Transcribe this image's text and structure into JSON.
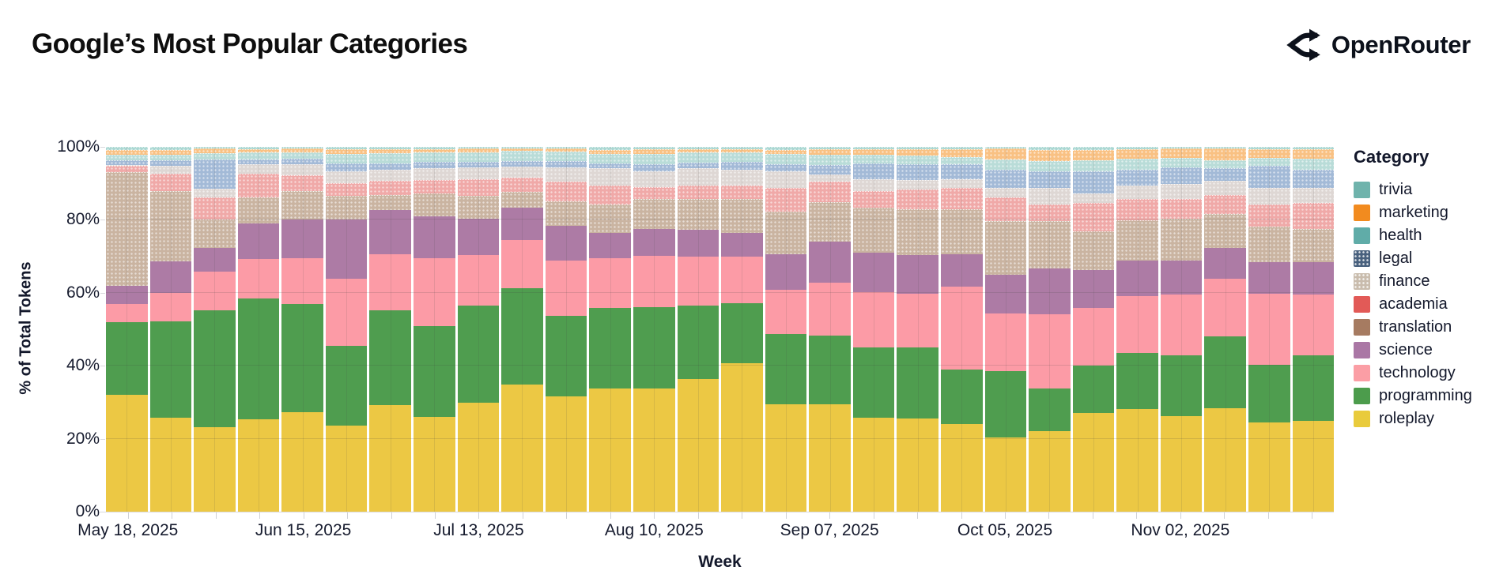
{
  "header": {
    "title": "Google’s Most Popular Categories",
    "brand": "OpenRouter",
    "brand_icon": "openrouter-fork-arrows"
  },
  "chart_data": {
    "type": "bar",
    "stacked": true,
    "title": "Google’s Most Popular Categories",
    "xlabel": "Week",
    "ylabel": "% of Total Tokens",
    "ylim": [
      0,
      100
    ],
    "grid": true,
    "legend_position": "right",
    "legend_title": "Category",
    "legend_order": [
      "trivia",
      "marketing",
      "health",
      "legal",
      "finance",
      "academia",
      "translation",
      "science",
      "technology",
      "programming",
      "roleplay"
    ],
    "y_ticks": [
      {
        "value": 0,
        "label": "0%"
      },
      {
        "value": 20,
        "label": "20%"
      },
      {
        "value": 40,
        "label": "40%"
      },
      {
        "value": 60,
        "label": "60%"
      },
      {
        "value": 80,
        "label": "80%"
      },
      {
        "value": 100,
        "label": "100%"
      }
    ],
    "categories": [
      "May 18",
      "May 25",
      "Jun 01",
      "Jun 08",
      "Jun 15",
      "Jun 22",
      "Jun 29",
      "Jul 06",
      "Jul 13",
      "Jul 20",
      "Jul 27",
      "Aug 03",
      "Aug 10",
      "Aug 17",
      "Aug 24",
      "Aug 31",
      "Sep 07",
      "Sep 14",
      "Sep 21",
      "Sep 28",
      "Oct 05",
      "Oct 12",
      "Oct 19",
      "Oct 26",
      "Nov 02",
      "Nov 09",
      "Nov 16",
      "Nov 23"
    ],
    "x_tick_labels": [
      {
        "bar_index": 0,
        "label": "May 18, 2025"
      },
      {
        "bar_index": 4,
        "label": "Jun 15, 2025"
      },
      {
        "bar_index": 8,
        "label": "Jul 13, 2025"
      },
      {
        "bar_index": 12,
        "label": "Aug 10, 2025"
      },
      {
        "bar_index": 16,
        "label": "Sep 07, 2025"
      },
      {
        "bar_index": 20,
        "label": "Oct 05, 2025"
      },
      {
        "bar_index": 24,
        "label": "Nov 02, 2025"
      }
    ],
    "series": [
      {
        "name": "roleplay",
        "bar_color": "#ecc844",
        "legend_color": "#e9cb3c",
        "pattern": false,
        "values": [
          32.0,
          25.8,
          23.2,
          25.3,
          27.3,
          23.7,
          29.2,
          25.9,
          29.9,
          34.9,
          31.7,
          33.8,
          33.8,
          36.4,
          40.8,
          29.5,
          29.5,
          25.7,
          25.5,
          24.0,
          20.4,
          22.0,
          27.0,
          28.2,
          26.3,
          28.4,
          24.5,
          25.0
        ]
      },
      {
        "name": "programming",
        "bar_color": "#4f9d4f",
        "legend_color": "#4c9c4c",
        "pattern": false,
        "values": [
          20.0,
          26.4,
          31.9,
          33.2,
          29.6,
          21.7,
          25.9,
          24.9,
          26.7,
          26.4,
          22.0,
          22.0,
          22.2,
          20.0,
          16.4,
          19.1,
          18.8,
          19.3,
          19.5,
          14.9,
          18.1,
          11.8,
          13.0,
          15.4,
          16.6,
          19.7,
          15.8,
          17.9
        ]
      },
      {
        "name": "technology",
        "bar_color": "#fc9ba6",
        "legend_color": "#fb9ea5",
        "pattern": false,
        "values": [
          5.0,
          7.8,
          10.7,
          10.8,
          12.6,
          18.4,
          15.5,
          18.7,
          13.7,
          13.2,
          15.1,
          13.7,
          14.1,
          13.5,
          12.7,
          12.3,
          14.4,
          15.2,
          14.8,
          22.7,
          15.9,
          20.3,
          15.8,
          15.5,
          16.6,
          15.8,
          19.5,
          16.7
        ]
      },
      {
        "name": "science",
        "bar_color": "#ad7ba5",
        "legend_color": "#aa77a5",
        "pattern": false,
        "values": [
          5.0,
          8.6,
          6.4,
          9.8,
          10.5,
          16.4,
          12.1,
          11.4,
          10.1,
          8.8,
          9.6,
          6.9,
          7.4,
          7.3,
          6.5,
          9.7,
          11.3,
          10.8,
          10.6,
          9.0,
          10.5,
          12.6,
          10.4,
          9.7,
          9.3,
          8.5,
          8.7,
          8.9
        ]
      },
      {
        "name": "translation",
        "bar_color": "#cab4a1",
        "legend_color": "#a67b61",
        "pattern": true,
        "values": [
          31.0,
          19.3,
          7.8,
          7.0,
          7.9,
          6.3,
          4.2,
          6.3,
          6.1,
          4.4,
          6.7,
          7.9,
          8.3,
          8.6,
          9.4,
          11.6,
          10.8,
          12.3,
          12.5,
          12.3,
          14.8,
          13.0,
          10.6,
          11.1,
          11.6,
          9.3,
          9.7,
          9.0
        ]
      },
      {
        "name": "academia",
        "bar_color": "#f0a9a8",
        "legend_color": "#e25a57",
        "pattern": true,
        "values": [
          1.8,
          4.7,
          6.1,
          6.5,
          4.4,
          3.6,
          3.7,
          3.7,
          4.7,
          3.9,
          5.4,
          5.1,
          3.2,
          3.6,
          3.6,
          6.5,
          5.7,
          4.6,
          5.4,
          5.8,
          6.4,
          4.6,
          7.9,
          5.9,
          5.4,
          5.2,
          6.1,
          7.2
        ]
      },
      {
        "name": "finance",
        "bar_color": "#ded7d4",
        "legend_color": "#c9bcad",
        "pattern": true,
        "values": [
          0.2,
          2.2,
          2.4,
          2.6,
          2.9,
          3.3,
          3.1,
          3.2,
          3.2,
          3.1,
          3.9,
          4.7,
          4.4,
          4.7,
          4.4,
          4.7,
          2.0,
          3.3,
          2.6,
          2.5,
          2.6,
          4.4,
          2.5,
          3.6,
          4.0,
          3.7,
          4.4,
          4.0
        ]
      },
      {
        "name": "legal",
        "bar_color": "#a3bad7",
        "legend_color": "#49617e",
        "pattern": true,
        "values": [
          1.3,
          1.5,
          8.1,
          1.3,
          1.6,
          2.0,
          1.8,
          1.8,
          1.5,
          1.5,
          1.7,
          1.4,
          1.8,
          1.6,
          2.1,
          1.8,
          2.5,
          4.2,
          4.3,
          4.0,
          5.0,
          4.7,
          6.2,
          4.3,
          4.6,
          3.6,
          6.1,
          5.0
        ]
      },
      {
        "name": "health",
        "bar_color": "#b9dcd8",
        "legend_color": "#60aca8",
        "pattern": true,
        "values": [
          1.5,
          1.5,
          1.7,
          1.9,
          1.8,
          2.7,
          2.8,
          2.5,
          2.7,
          2.8,
          2.7,
          2.6,
          2.9,
          2.7,
          2.5,
          2.9,
          2.8,
          2.4,
          2.5,
          2.1,
          2.9,
          2.8,
          3.0,
          3.1,
          2.6,
          2.2,
          2.2,
          3.1
        ]
      },
      {
        "name": "marketing",
        "bar_color": "#f9c183",
        "legend_color": "#f28b1f",
        "pattern": true,
        "values": [
          1.3,
          1.4,
          1.2,
          0.9,
          0.9,
          1.2,
          1.1,
          1.0,
          0.9,
          0.5,
          0.7,
          1.0,
          1.2,
          0.9,
          1.0,
          1.1,
          1.5,
          1.5,
          1.6,
          2.0,
          2.9,
          2.9,
          2.8,
          2.6,
          2.5,
          3.1,
          2.3,
          2.5
        ]
      },
      {
        "name": "trivia",
        "bar_color": "#aad7d2",
        "legend_color": "#6fb3ac",
        "pattern": true,
        "values": [
          0.9,
          0.8,
          0.5,
          0.7,
          0.5,
          0.7,
          0.6,
          0.6,
          0.5,
          0.5,
          0.5,
          0.9,
          0.7,
          0.7,
          0.6,
          0.8,
          0.7,
          0.7,
          0.7,
          0.7,
          0.5,
          0.9,
          0.8,
          0.6,
          0.5,
          0.5,
          0.7,
          0.7
        ]
      }
    ]
  }
}
